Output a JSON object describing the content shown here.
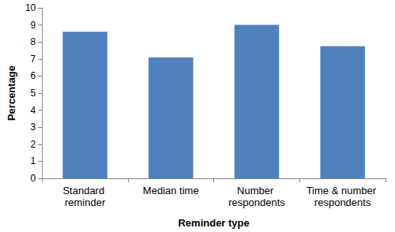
{
  "chart_data": {
    "type": "bar",
    "categories": [
      "Standard reminder",
      "Median time",
      "Number respondents",
      "Time & number respondents"
    ],
    "values": [
      8.6,
      7.1,
      9.0,
      7.75
    ],
    "color": "#4f81bd",
    "xlabel": "Reminder type",
    "ylabel": "Percentage",
    "ylim": [
      0,
      10
    ],
    "yticks": [
      0,
      1,
      2,
      3,
      4,
      5,
      6,
      7,
      8,
      9,
      10
    ],
    "grid": false
  }
}
